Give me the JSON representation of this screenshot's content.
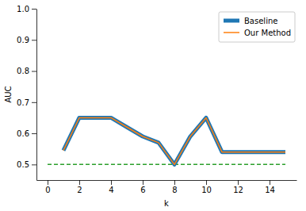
{
  "chart_data": {
    "type": "line",
    "x_label": "k",
    "y_label": "AUC",
    "x": [
      1,
      2,
      3,
      4,
      5,
      6,
      7,
      8,
      9,
      10,
      11,
      12,
      13,
      14,
      15
    ],
    "series": [
      {
        "name": "Baseline",
        "color": "#1f77b4",
        "line_style": "solid",
        "values": [
          0.545,
          0.65,
          0.65,
          0.65,
          0.62,
          0.59,
          0.57,
          0.5,
          0.59,
          0.65,
          0.54,
          0.54,
          0.54,
          0.54,
          0.54
        ]
      },
      {
        "name": "Our Method",
        "color": "#ff7f0e",
        "line_style": "solid",
        "values": [
          0.545,
          0.65,
          0.65,
          0.65,
          0.62,
          0.59,
          0.57,
          0.5,
          0.59,
          0.65,
          0.54,
          0.54,
          0.54,
          0.54,
          0.54
        ]
      }
    ],
    "hline": {
      "y": 0.5,
      "xmin": 0,
      "xmax": 15,
      "color": "#2ca02c",
      "line_style": "dashed"
    },
    "xlim": [
      -0.7,
      15.7
    ],
    "xticks": [
      0,
      2,
      4,
      6,
      8,
      10,
      12,
      14
    ],
    "ylim": [
      0.45,
      1.0
    ],
    "yticks": [
      0.5,
      0.6,
      0.7,
      0.8,
      0.9,
      {
        "value": 1.0,
        "label": "1.0"
      }
    ],
    "legend": "upper right",
    "grid": false
  }
}
